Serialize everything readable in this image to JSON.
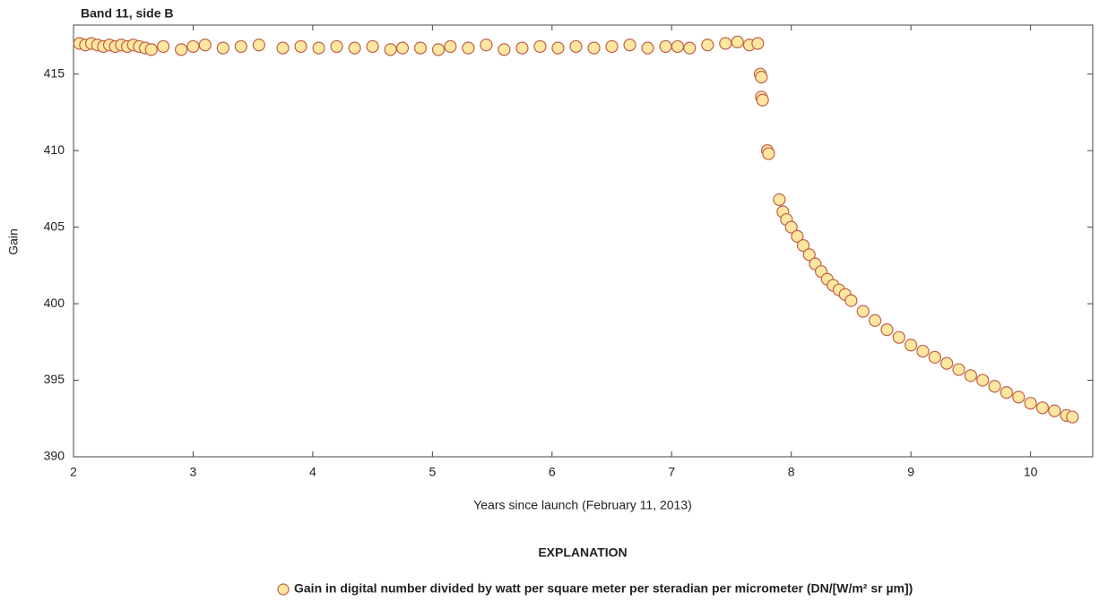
{
  "chart_data": {
    "type": "scatter",
    "title": "Band 11, side B",
    "x_label": "Years since launch (February 11, 2013)",
    "y_label": "Gain",
    "legend_title": "EXPLANATION",
    "x": [
      2.05,
      2.1,
      2.15,
      2.2,
      2.25,
      2.3,
      2.35,
      2.4,
      2.45,
      2.5,
      2.55,
      2.6,
      2.65,
      2.75,
      2.9,
      3.0,
      3.1,
      3.25,
      3.4,
      3.55,
      3.75,
      3.9,
      4.05,
      4.2,
      4.35,
      4.5,
      4.65,
      4.75,
      4.9,
      5.05,
      5.15,
      5.3,
      5.45,
      5.6,
      5.75,
      5.9,
      6.05,
      6.2,
      6.35,
      6.5,
      6.65,
      6.8,
      6.95,
      7.05,
      7.15,
      7.3,
      7.45,
      7.55,
      7.65,
      7.72,
      7.74,
      7.75,
      7.75,
      7.76,
      7.8,
      7.81,
      7.9,
      7.93,
      7.96,
      8.0,
      8.05,
      8.1,
      8.15,
      8.2,
      8.25,
      8.3,
      8.35,
      8.4,
      8.45,
      8.5,
      8.6,
      8.7,
      8.8,
      8.9,
      9.0,
      9.1,
      9.2,
      9.3,
      9.4,
      9.5,
      9.6,
      9.7,
      9.8,
      9.9,
      10.0,
      10.1,
      10.2,
      10.3,
      10.35
    ],
    "series": [
      {
        "name": "Gain in digital number divided by watt per square meter per steradian per micrometer (DN/[W/m² sr µm])",
        "color": "#fde7a0",
        "edgecolor": "#c0604a",
        "values": [
          417.0,
          416.9,
          417.0,
          416.9,
          416.8,
          416.9,
          416.8,
          416.9,
          416.8,
          416.9,
          416.8,
          416.7,
          416.6,
          416.8,
          416.6,
          416.8,
          416.9,
          416.7,
          416.8,
          416.9,
          416.7,
          416.8,
          416.7,
          416.8,
          416.7,
          416.8,
          416.6,
          416.7,
          416.7,
          416.6,
          416.8,
          416.7,
          416.9,
          416.6,
          416.7,
          416.8,
          416.7,
          416.8,
          416.7,
          416.8,
          416.9,
          416.7,
          416.8,
          416.8,
          416.7,
          416.9,
          417.0,
          417.1,
          416.9,
          417.0,
          415.0,
          414.8,
          413.5,
          413.3,
          410.0,
          409.8,
          406.8,
          406.0,
          405.5,
          405.0,
          404.4,
          403.8,
          403.2,
          402.6,
          402.1,
          401.6,
          401.2,
          400.9,
          400.6,
          400.2,
          399.5,
          398.9,
          398.3,
          397.8,
          397.3,
          396.9,
          396.5,
          396.1,
          395.7,
          395.3,
          395.0,
          394.6,
          394.2,
          393.9,
          393.5,
          393.2,
          393.0,
          392.7,
          392.6
        ]
      }
    ],
    "xlim": [
      2,
      10.52
    ],
    "ylim": [
      390,
      418.2
    ],
    "xticks": [
      2,
      3,
      4,
      5,
      6,
      7,
      8,
      9,
      10
    ],
    "yticks": [
      390,
      395,
      400,
      405,
      410,
      415
    ]
  }
}
